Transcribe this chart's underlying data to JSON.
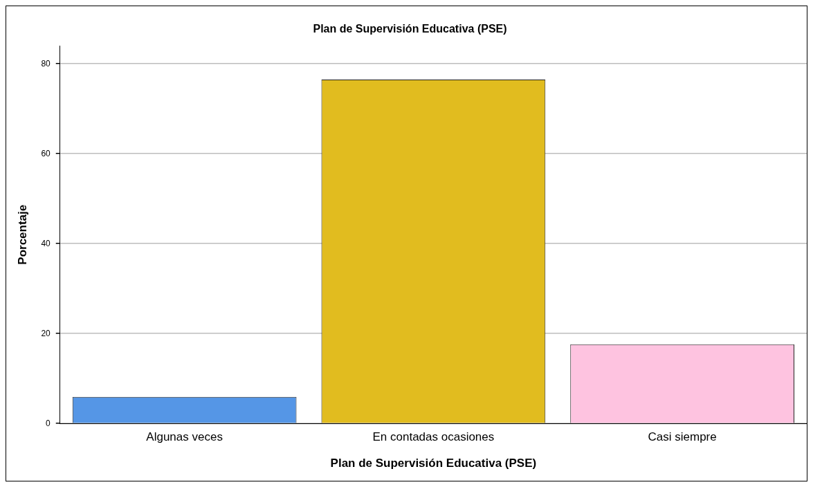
{
  "chart_data": {
    "type": "bar",
    "title": "Plan de Supervisión Educativa (PSE)",
    "xlabel": "Plan de Supervisión Educativa (PSE)",
    "ylabel": "Porcentaje",
    "categories": [
      "Algunas veces",
      "En contadas ocasiones",
      "Casi siempre"
    ],
    "values": [
      5.9,
      76.5,
      17.6
    ],
    "colors": [
      "#5596e6",
      "#e1bc1f",
      "#fec3e0"
    ],
    "ylim": [
      0,
      84
    ],
    "yticks": [
      0,
      20,
      40,
      60,
      80
    ],
    "grid": "y"
  }
}
